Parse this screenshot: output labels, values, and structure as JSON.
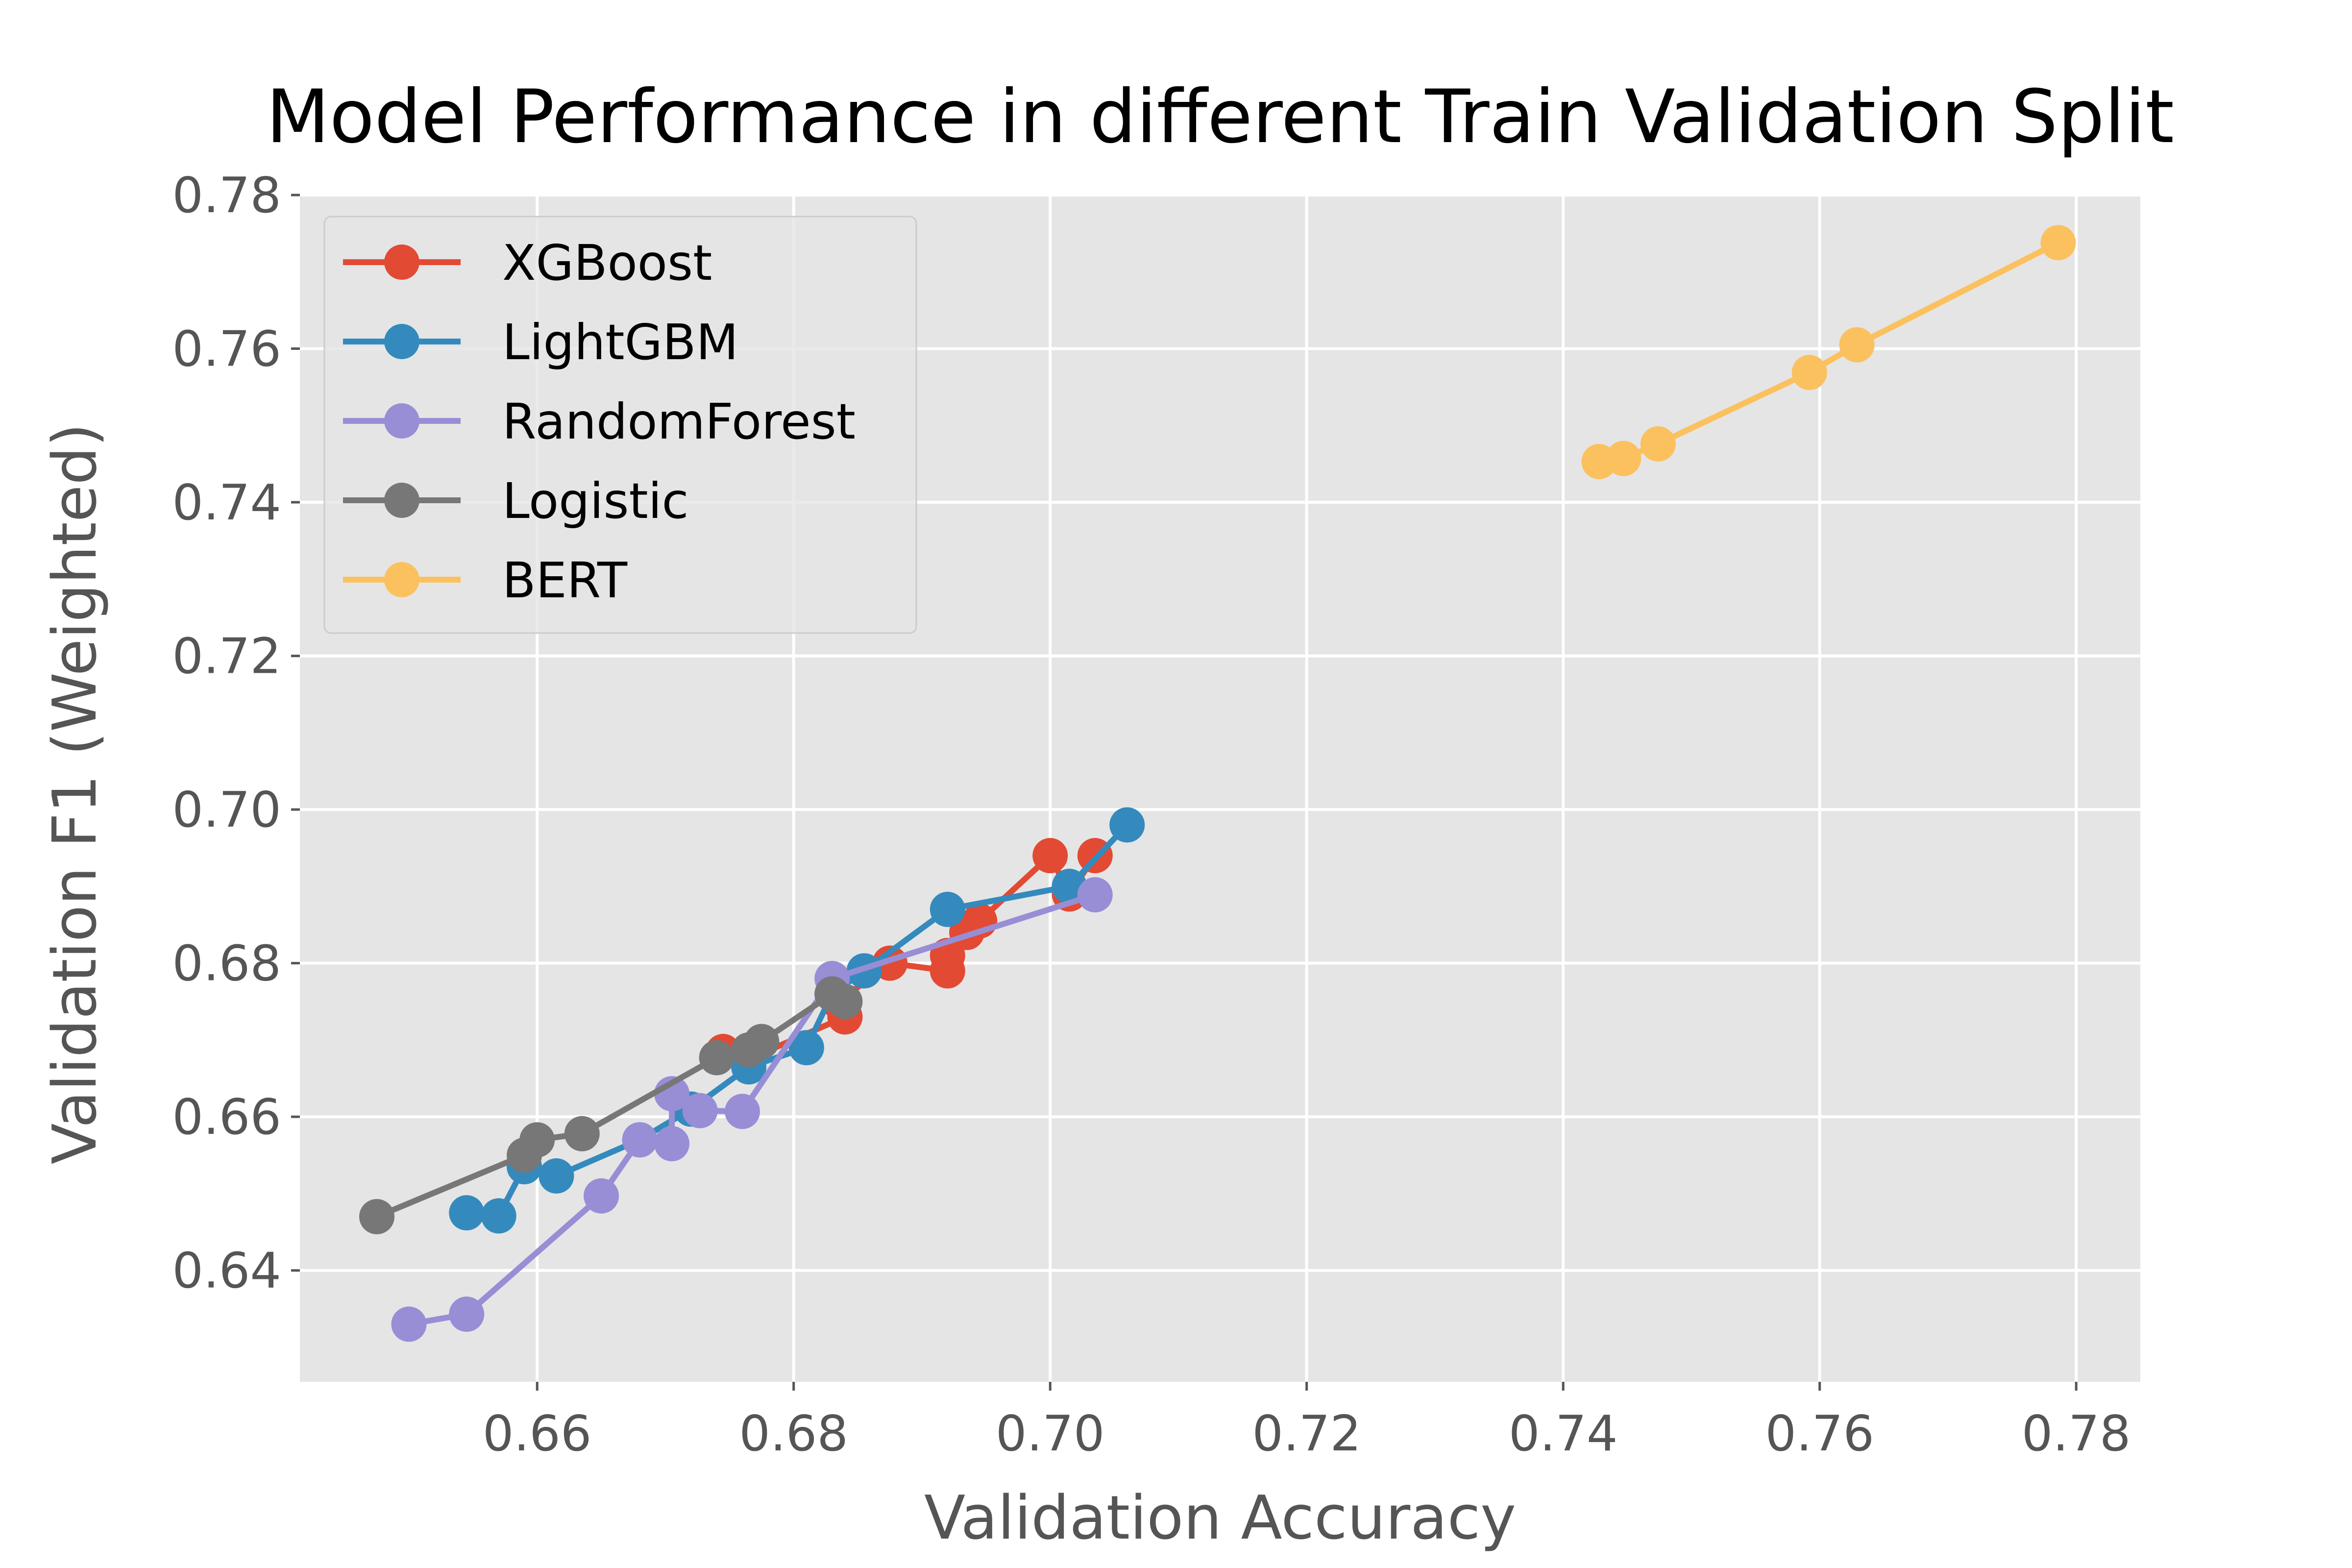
{
  "chart_data": {
    "type": "line",
    "title": "Model Performance in different Train Validation Split",
    "xlabel": "Validation Accuracy",
    "ylabel": "Validation F1 (Weighted)",
    "xlim": [
      0.6415,
      0.785
    ],
    "ylim": [
      0.6255,
      0.78
    ],
    "xticks": [
      "0.66",
      "0.68",
      "0.70",
      "0.72",
      "0.74",
      "0.76",
      "0.78"
    ],
    "yticks": [
      "0.64",
      "0.66",
      "0.68",
      "0.70",
      "0.72",
      "0.74",
      "0.76",
      "0.78"
    ],
    "grid": true,
    "legend": "top-left",
    "style": "ggplot",
    "series": [
      {
        "name": "XGBoost",
        "color": "#e24a33",
        "points": [
          [
            0.6745,
            0.6685
          ],
          [
            0.6765,
            0.6675
          ],
          [
            0.684,
            0.673
          ],
          [
            0.6835,
            0.675
          ],
          [
            0.6875,
            0.68
          ],
          [
            0.692,
            0.679
          ],
          [
            0.692,
            0.681
          ],
          [
            0.6935,
            0.684
          ],
          [
            0.6945,
            0.6855
          ],
          [
            0.7,
            0.694
          ],
          [
            0.7015,
            0.689
          ],
          [
            0.7035,
            0.694
          ]
        ]
      },
      {
        "name": "LightGBM",
        "color": "#348abd",
        "points": [
          [
            0.6545,
            0.6475
          ],
          [
            0.657,
            0.6471
          ],
          [
            0.659,
            0.6535
          ],
          [
            0.6615,
            0.6523
          ],
          [
            0.668,
            0.657
          ],
          [
            0.672,
            0.661
          ],
          [
            0.6765,
            0.6665
          ],
          [
            0.681,
            0.669
          ],
          [
            0.683,
            0.676
          ],
          [
            0.6855,
            0.679
          ],
          [
            0.692,
            0.687
          ],
          [
            0.7015,
            0.69
          ],
          [
            0.706,
            0.698
          ]
        ]
      },
      {
        "name": "RandomForest",
        "color": "#988ed5",
        "points": [
          [
            0.65,
            0.633
          ],
          [
            0.6545,
            0.6343
          ],
          [
            0.665,
            0.6497
          ],
          [
            0.668,
            0.657
          ],
          [
            0.6705,
            0.6565
          ],
          [
            0.6705,
            0.663
          ],
          [
            0.6727,
            0.6608
          ],
          [
            0.676,
            0.6607
          ],
          [
            0.683,
            0.678
          ],
          [
            0.7035,
            0.6889
          ]
        ]
      },
      {
        "name": "Logistic",
        "color": "#777777",
        "points": [
          [
            0.6475,
            0.647
          ],
          [
            0.659,
            0.655
          ],
          [
            0.66,
            0.657
          ],
          [
            0.6635,
            0.6578
          ],
          [
            0.674,
            0.6677
          ],
          [
            0.6765,
            0.6687
          ],
          [
            0.6775,
            0.6698
          ],
          [
            0.683,
            0.676
          ],
          [
            0.684,
            0.675
          ]
        ]
      },
      {
        "name": "BERT",
        "color": "#fbc15e",
        "points": [
          [
            0.7428,
            0.7453
          ],
          [
            0.7447,
            0.7457
          ],
          [
            0.7474,
            0.7476
          ],
          [
            0.7592,
            0.7569
          ],
          [
            0.7629,
            0.7605
          ],
          [
            0.7786,
            0.7738
          ]
        ]
      }
    ]
  }
}
